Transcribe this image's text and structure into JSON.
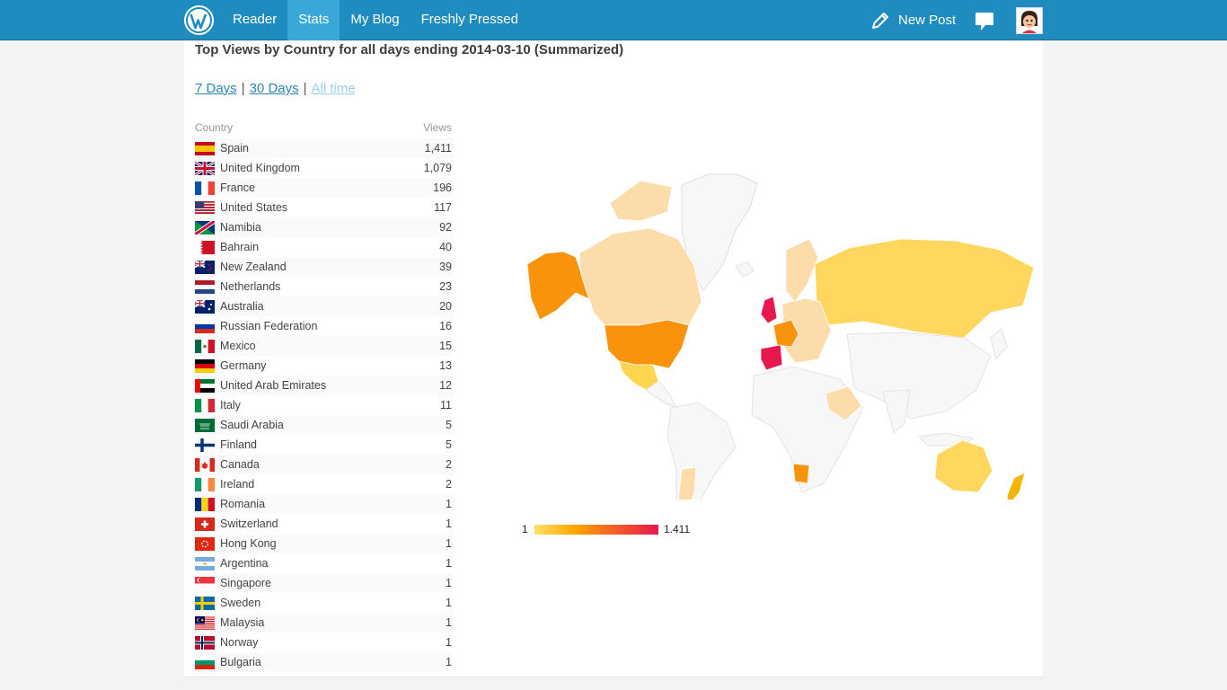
{
  "topbar": {
    "nav": [
      "Reader",
      "Stats",
      "My Blog",
      "Freshly Pressed"
    ],
    "active": "Stats",
    "new_post": "New Post",
    "icons": [
      "wordpress-logo-icon",
      "pencil-icon",
      "comment-icon",
      "avatar"
    ]
  },
  "page": {
    "title": "Top Views by Country for all days ending 2014-03-10 (Summarized)",
    "periods": [
      "7 Days",
      "30 Days",
      "All time"
    ],
    "current_period": "All time",
    "table_headers": {
      "country": "Country",
      "views": "Views"
    },
    "countries": [
      {
        "name": "Spain",
        "views": "1,411"
      },
      {
        "name": "United Kingdom",
        "views": "1,079"
      },
      {
        "name": "France",
        "views": "196"
      },
      {
        "name": "United States",
        "views": "117"
      },
      {
        "name": "Namibia",
        "views": "92"
      },
      {
        "name": "Bahrain",
        "views": "40"
      },
      {
        "name": "New Zealand",
        "views": "39"
      },
      {
        "name": "Netherlands",
        "views": "23"
      },
      {
        "name": "Australia",
        "views": "20"
      },
      {
        "name": "Russian Federation",
        "views": "16"
      },
      {
        "name": "Mexico",
        "views": "15"
      },
      {
        "name": "Germany",
        "views": "13"
      },
      {
        "name": "United Arab Emirates",
        "views": "12"
      },
      {
        "name": "Italy",
        "views": "11"
      },
      {
        "name": "Saudi Arabia",
        "views": "5"
      },
      {
        "name": "Finland",
        "views": "5"
      },
      {
        "name": "Canada",
        "views": "2"
      },
      {
        "name": "Ireland",
        "views": "2"
      },
      {
        "name": "Romania",
        "views": "1"
      },
      {
        "name": "Switzerland",
        "views": "1"
      },
      {
        "name": "Hong Kong",
        "views": "1"
      },
      {
        "name": "Argentina",
        "views": "1"
      },
      {
        "name": "Singapore",
        "views": "1"
      },
      {
        "name": "Sweden",
        "views": "1"
      },
      {
        "name": "Malaysia",
        "views": "1"
      },
      {
        "name": "Norway",
        "views": "1"
      },
      {
        "name": "Bulgaria",
        "views": "1"
      }
    ],
    "legend": {
      "min": "1",
      "max": "1.411"
    }
  },
  "colors": {
    "topbar": "#1e8cbe",
    "active_tab": "#3aa7d9",
    "link": "#2a86b3",
    "link_current": "#9bd0ea",
    "scale_low": "#ffe066",
    "scale_mid": "#ffa500",
    "scale_high": "#e8174e"
  }
}
